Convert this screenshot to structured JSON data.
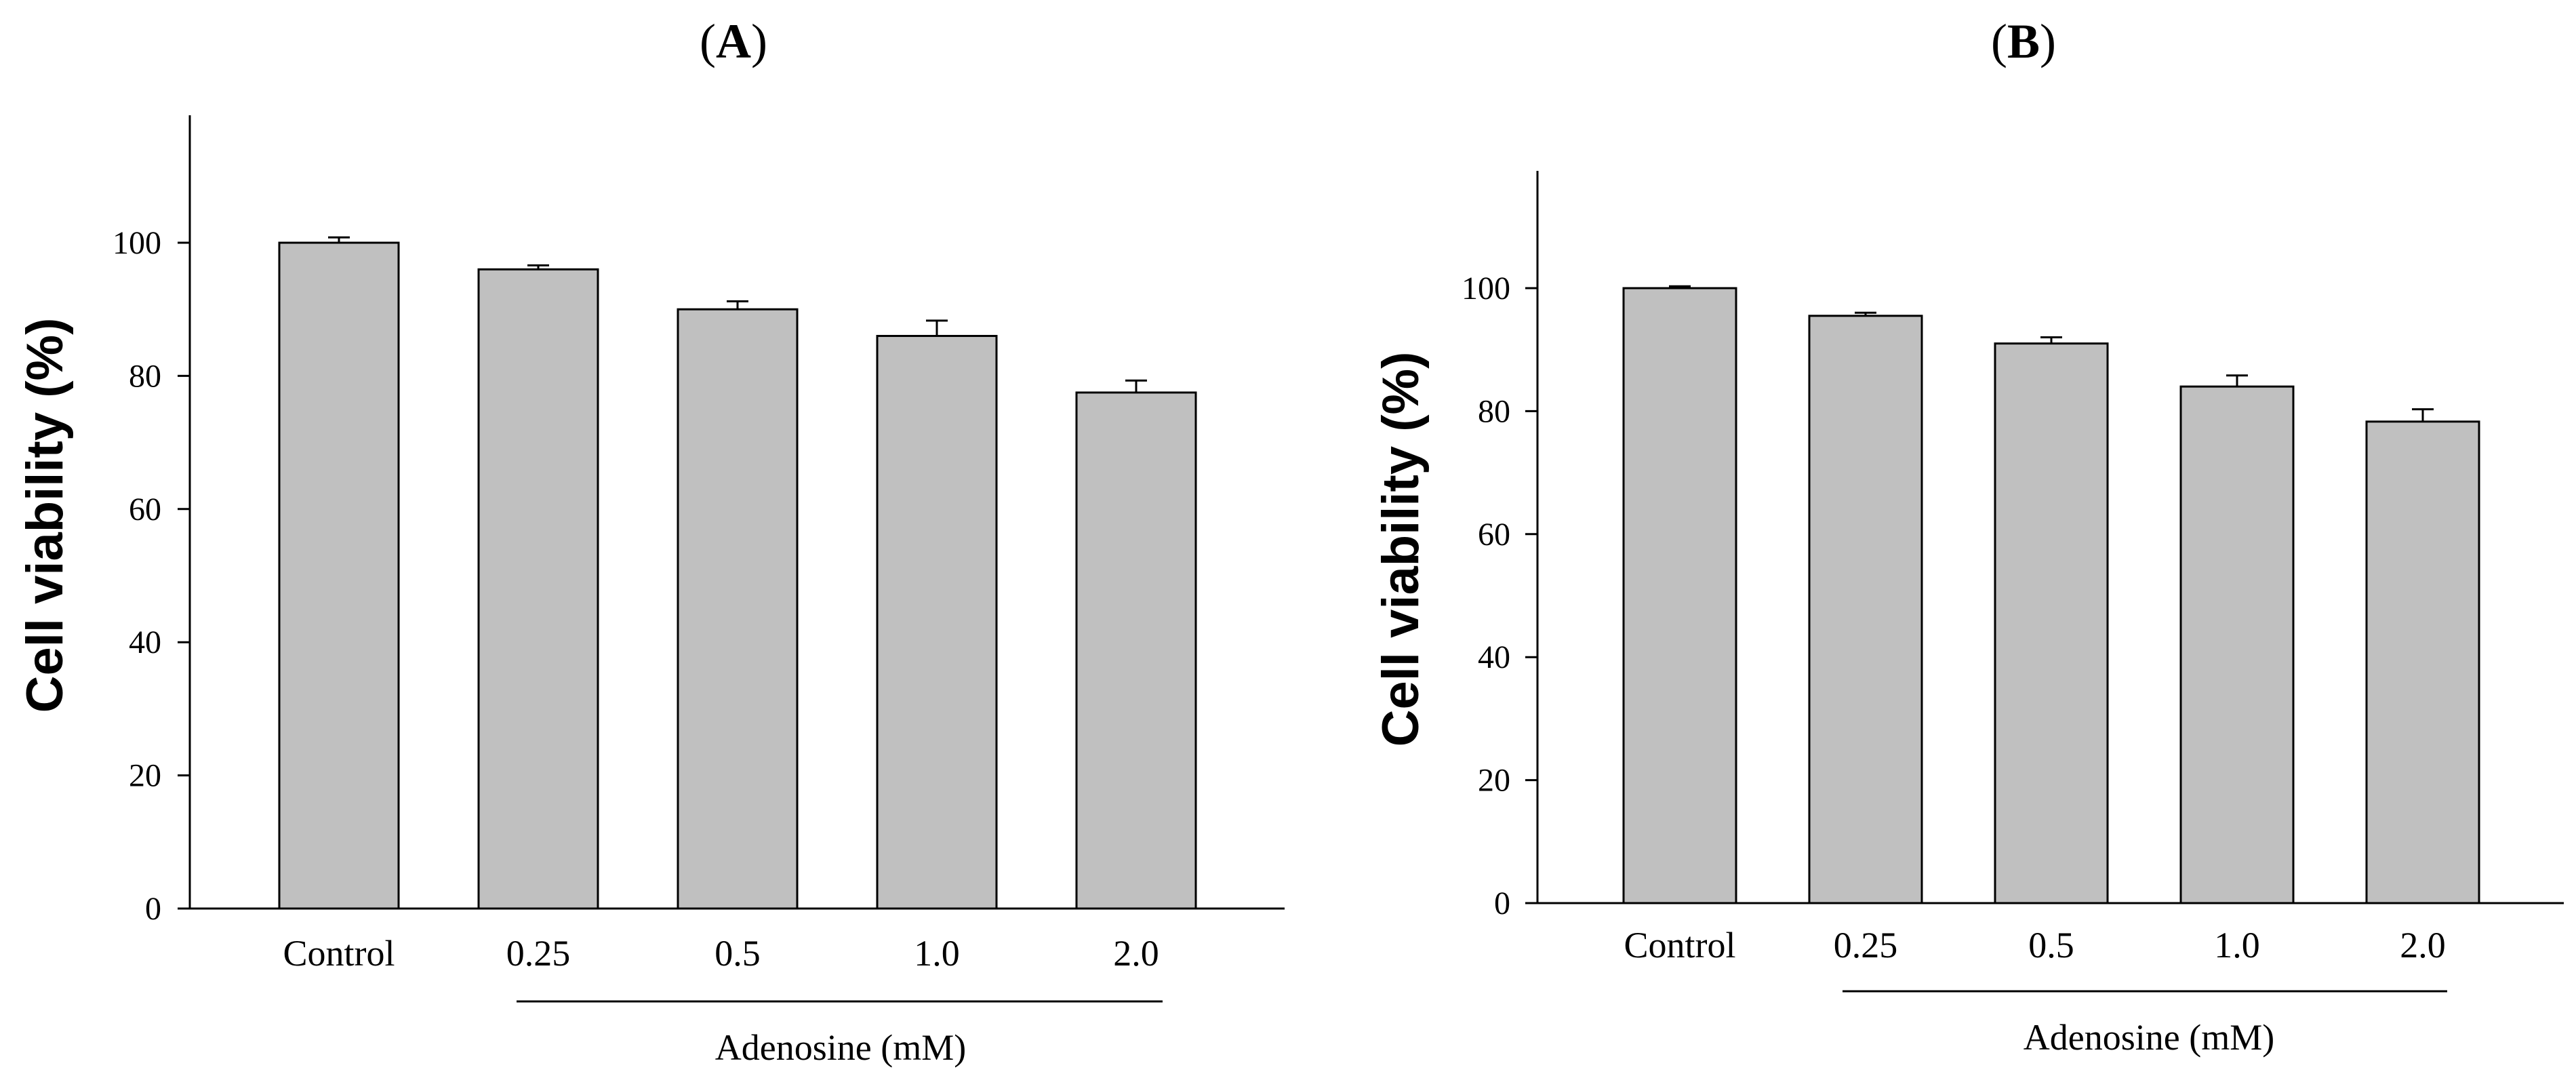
{
  "chart_data": [
    {
      "panel": "A",
      "type": "bar",
      "title": "(A)",
      "ylabel": "Cell viability (%)",
      "xlabel": "Adenosine (mM)",
      "ylim": [
        0,
        120
      ],
      "yticks": [
        0,
        20,
        40,
        60,
        80,
        100
      ],
      "categories": [
        "Control",
        "0.25",
        "0.5",
        "1.0",
        "2.0"
      ],
      "values": [
        100,
        96,
        90,
        86,
        77.5
      ],
      "errors": [
        0.8,
        0.6,
        1.2,
        2.3,
        1.8
      ],
      "bar_color": "#c0c0c0",
      "group_label_covers": [
        "0.25",
        "0.5",
        "1.0",
        "2.0"
      ]
    },
    {
      "panel": "B",
      "type": "bar",
      "title": "(B)",
      "ylabel": "Cell viability (%)",
      "xlabel": "Adenosine (mM)",
      "ylim": [
        0,
        120
      ],
      "yticks": [
        0,
        20,
        40,
        60,
        80,
        100
      ],
      "categories": [
        "Control",
        "0.25",
        "0.5",
        "1.0",
        "2.0"
      ],
      "values": [
        100,
        95.5,
        91,
        84,
        78.3
      ],
      "errors": [
        0.3,
        0.5,
        1.0,
        1.8,
        2.0
      ],
      "bar_color": "#c0c0c0",
      "group_label_covers": [
        "0.25",
        "0.5",
        "1.0",
        "2.0"
      ]
    }
  ]
}
